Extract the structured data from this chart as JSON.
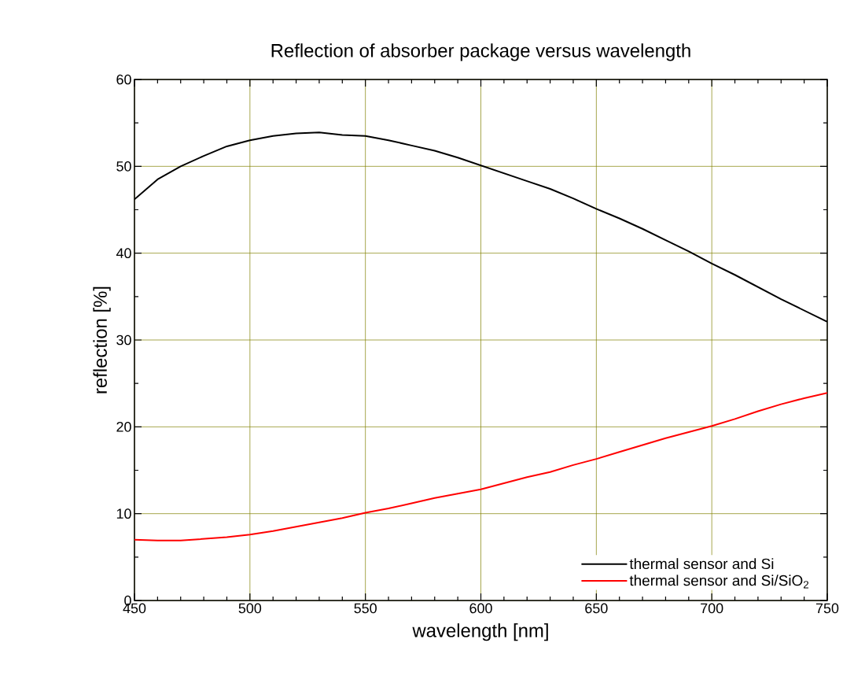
{
  "chart_data": {
    "type": "line",
    "title": "Reflection of absorber package versus wavelength",
    "xlabel": "wavelength [nm]",
    "ylabel": "reflection [%]",
    "x": [
      450,
      460,
      470,
      480,
      490,
      500,
      510,
      520,
      530,
      540,
      550,
      560,
      570,
      580,
      590,
      600,
      610,
      620,
      630,
      640,
      650,
      660,
      670,
      680,
      690,
      700,
      710,
      720,
      730,
      740,
      750
    ],
    "series": [
      {
        "name": "thermal sensor and Si",
        "color": "#000000",
        "values": [
          46.2,
          48.5,
          50.0,
          51.2,
          52.3,
          53.0,
          53.5,
          53.8,
          53.9,
          53.6,
          53.5,
          53.0,
          52.4,
          51.8,
          51.0,
          50.1,
          49.2,
          48.3,
          47.4,
          46.3,
          45.1,
          44.0,
          42.8,
          41.5,
          40.2,
          38.8,
          37.5,
          36.1,
          34.7,
          33.4,
          32.1
        ]
      },
      {
        "name": "thermal sensor and Si/SiO$_{2}$",
        "color": "#ff0000",
        "values": [
          7.0,
          6.9,
          6.9,
          7.1,
          7.3,
          7.6,
          8.0,
          8.5,
          9.0,
          9.5,
          10.1,
          10.6,
          11.2,
          11.8,
          12.3,
          12.8,
          13.5,
          14.2,
          14.8,
          15.6,
          16.3,
          17.1,
          17.9,
          18.7,
          19.4,
          20.1,
          20.9,
          21.8,
          22.6,
          23.3,
          23.9
        ]
      }
    ],
    "xlim": [
      450,
      750
    ],
    "ylim": [
      0,
      60
    ],
    "xticks": [
      450,
      500,
      550,
      600,
      650,
      700,
      750
    ],
    "yticks": [
      0,
      10,
      20,
      30,
      40,
      50,
      60
    ],
    "grid": true,
    "legend": "bottom right",
    "marker": "none",
    "line_style": "solid"
  }
}
